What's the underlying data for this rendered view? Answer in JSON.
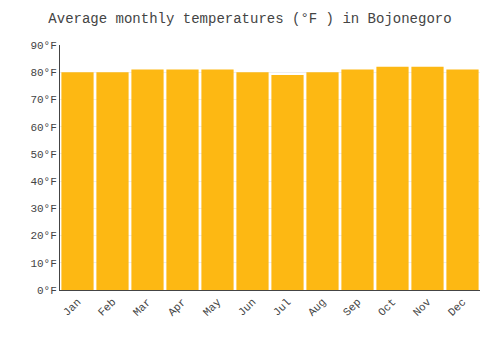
{
  "chart_data": {
    "type": "bar",
    "title": "Average monthly temperatures (°F ) in Bojonegoro",
    "categories": [
      "Jan",
      "Feb",
      "Mar",
      "Apr",
      "May",
      "Jun",
      "Jul",
      "Aug",
      "Sep",
      "Oct",
      "Nov",
      "Dec"
    ],
    "values": [
      80,
      80,
      81,
      81,
      81,
      80,
      79,
      80,
      81,
      82,
      82,
      81
    ],
    "color": "#FDB813",
    "ylim": [
      0,
      90
    ],
    "yticks": [
      {
        "value": 0,
        "label": "0°F"
      },
      {
        "value": 10,
        "label": "10°F"
      },
      {
        "value": 20,
        "label": "20°F"
      },
      {
        "value": 30,
        "label": "30°F"
      },
      {
        "value": 40,
        "label": "40°F"
      },
      {
        "value": 50,
        "label": "50°F"
      },
      {
        "value": 60,
        "label": "60°F"
      },
      {
        "value": 70,
        "label": "70°F"
      },
      {
        "value": 80,
        "label": "80°F"
      },
      {
        "value": 90,
        "label": "90°F"
      }
    ],
    "grid": true
  }
}
